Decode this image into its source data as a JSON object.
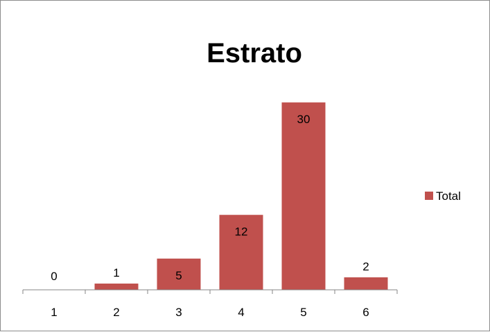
{
  "chart_data": {
    "type": "bar",
    "title": "Estrato",
    "categories": [
      "1",
      "2",
      "3",
      "4",
      "5",
      "6"
    ],
    "series": [
      {
        "name": "Total",
        "values": [
          0,
          1,
          5,
          12,
          30,
          2
        ]
      }
    ],
    "data_labels": [
      "0",
      "1",
      "5",
      "12",
      "30",
      "2"
    ],
    "xlabel": "",
    "ylabel": "",
    "ylim": [
      0,
      33
    ],
    "grid": false,
    "legend_position": "right",
    "colors": {
      "bar": "#c0504d",
      "axis": "#868686",
      "border": "#8c8c8c"
    }
  }
}
